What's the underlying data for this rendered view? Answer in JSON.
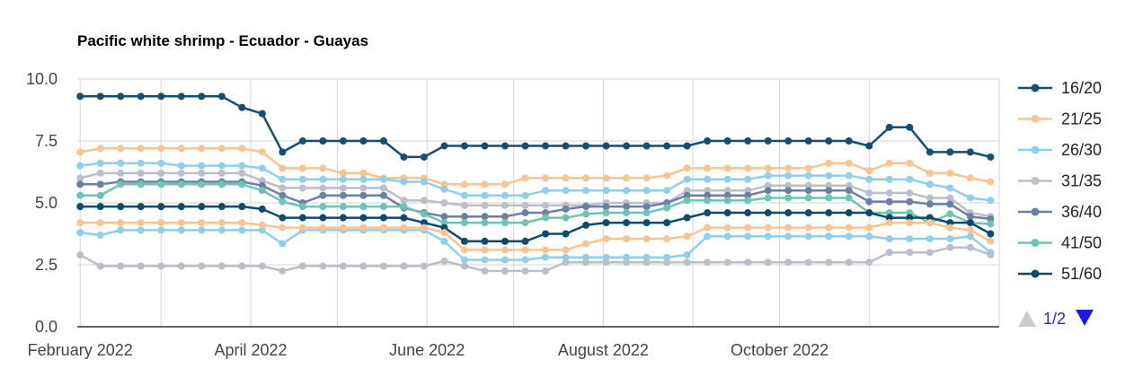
{
  "chart_data": {
    "type": "line",
    "title": "Pacific white shrimp - Ecuador - Guayas",
    "xlabel": "",
    "ylabel": "",
    "ylim": [
      0,
      10
    ],
    "y_ticks": [
      "0.0",
      "2.5",
      "5.0",
      "7.5",
      "10.0"
    ],
    "x_ticks": [
      {
        "date": "2022-02-01",
        "label": "February 2022"
      },
      {
        "date": "2022-04-01",
        "label": "April 2022"
      },
      {
        "date": "2022-06-01",
        "label": "June 2022"
      },
      {
        "date": "2022-08-01",
        "label": "August 2022"
      },
      {
        "date": "2022-10-01",
        "label": "October 2022"
      }
    ],
    "x_gridlines": [
      "2022-02-01",
      "2022-03-01",
      "2022-04-01",
      "2022-05-01",
      "2022-06-01",
      "2022-07-01",
      "2022-08-01",
      "2022-09-01",
      "2022-10-01",
      "2022-11-01"
    ],
    "xlim": [
      "2022-01-31",
      "2022-12-16"
    ],
    "grid": true,
    "legend_position": "right",
    "x": [
      "2022-02-01",
      "2022-02-08",
      "2022-02-15",
      "2022-02-22",
      "2022-03-01",
      "2022-03-08",
      "2022-03-15",
      "2022-03-22",
      "2022-03-29",
      "2022-04-05",
      "2022-04-12",
      "2022-04-19",
      "2022-04-26",
      "2022-05-03",
      "2022-05-10",
      "2022-05-17",
      "2022-05-24",
      "2022-05-31",
      "2022-06-07",
      "2022-06-14",
      "2022-06-21",
      "2022-06-28",
      "2022-07-05",
      "2022-07-12",
      "2022-07-19",
      "2022-07-26",
      "2022-08-02",
      "2022-08-09",
      "2022-08-16",
      "2022-08-23",
      "2022-08-30",
      "2022-09-06",
      "2022-09-13",
      "2022-09-20",
      "2022-09-27",
      "2022-10-04",
      "2022-10-11",
      "2022-10-18",
      "2022-10-25",
      "2022-11-01",
      "2022-11-08",
      "2022-11-15",
      "2022-11-22",
      "2022-11-29",
      "2022-12-06",
      "2022-12-13"
    ],
    "series": [
      {
        "name": "16/20",
        "color": "#134f70",
        "values": [
          9.3,
          9.3,
          9.3,
          9.3,
          9.3,
          9.3,
          9.3,
          9.3,
          8.85,
          8.6,
          7.05,
          7.5,
          7.5,
          7.5,
          7.5,
          7.5,
          6.85,
          6.85,
          7.3,
          7.3,
          7.3,
          7.3,
          7.3,
          7.3,
          7.3,
          7.3,
          7.3,
          7.3,
          7.3,
          7.3,
          7.3,
          7.5,
          7.5,
          7.5,
          7.5,
          7.5,
          7.5,
          7.5,
          7.5,
          7.3,
          8.05,
          8.05,
          7.05,
          7.05,
          7.05,
          6.85
        ]
      },
      {
        "name": "21/25",
        "color": "#fbc390",
        "values": [
          7.05,
          7.2,
          7.2,
          7.2,
          7.2,
          7.2,
          7.2,
          7.2,
          7.2,
          7.05,
          6.4,
          6.4,
          6.4,
          6.2,
          6.2,
          6.0,
          6.0,
          6.0,
          5.75,
          5.75,
          5.75,
          5.75,
          6.0,
          6.0,
          6.0,
          6.0,
          6.0,
          6.0,
          6.0,
          6.1,
          6.4,
          6.4,
          6.4,
          6.4,
          6.4,
          6.4,
          6.4,
          6.6,
          6.6,
          6.3,
          6.6,
          6.6,
          6.2,
          6.2,
          6.0,
          5.85
        ]
      },
      {
        "name": "26/30",
        "color": "#8fcfea",
        "values": [
          6.5,
          6.6,
          6.6,
          6.6,
          6.6,
          6.5,
          6.5,
          6.5,
          6.5,
          6.4,
          5.95,
          5.95,
          5.95,
          5.95,
          5.95,
          5.95,
          5.85,
          5.85,
          5.55,
          5.3,
          5.3,
          5.3,
          5.3,
          5.5,
          5.5,
          5.5,
          5.5,
          5.5,
          5.5,
          5.5,
          5.95,
          5.95,
          5.95,
          5.95,
          6.1,
          6.1,
          6.1,
          6.1,
          6.1,
          5.95,
          5.95,
          5.95,
          5.75,
          5.6,
          5.2,
          5.1
        ]
      },
      {
        "name": "31/35",
        "color": "#bbbfcc",
        "values": [
          6.0,
          6.2,
          6.2,
          6.2,
          6.2,
          6.2,
          6.2,
          6.2,
          6.2,
          5.9,
          5.6,
          5.6,
          5.6,
          5.6,
          5.6,
          5.6,
          5.1,
          5.1,
          5.0,
          4.9,
          4.9,
          4.9,
          4.9,
          4.9,
          4.9,
          4.9,
          5.0,
          5.0,
          5.0,
          5.0,
          5.5,
          5.5,
          5.5,
          5.5,
          5.7,
          5.7,
          5.7,
          5.7,
          5.7,
          5.4,
          5.4,
          5.4,
          5.2,
          5.2,
          4.6,
          4.45
        ]
      },
      {
        "name": "36/40",
        "color": "#6b81a3",
        "values": [
          5.75,
          5.75,
          5.85,
          5.85,
          5.85,
          5.85,
          5.85,
          5.85,
          5.85,
          5.7,
          5.3,
          5.0,
          5.3,
          5.3,
          5.3,
          5.3,
          4.8,
          4.6,
          4.45,
          4.45,
          4.45,
          4.45,
          4.6,
          4.6,
          4.75,
          4.85,
          4.85,
          4.85,
          4.85,
          5.0,
          5.3,
          5.3,
          5.3,
          5.3,
          5.5,
          5.5,
          5.5,
          5.5,
          5.5,
          5.05,
          5.05,
          5.05,
          4.95,
          4.95,
          4.45,
          4.35
        ]
      },
      {
        "name": "41/50",
        "color": "#6ec4b3",
        "values": [
          5.3,
          5.3,
          5.75,
          5.75,
          5.75,
          5.75,
          5.75,
          5.75,
          5.75,
          5.5,
          5.05,
          4.85,
          4.85,
          4.85,
          4.85,
          4.85,
          4.85,
          4.55,
          4.2,
          4.2,
          4.2,
          4.2,
          4.2,
          4.4,
          4.4,
          4.55,
          4.6,
          4.6,
          4.6,
          4.8,
          5.1,
          5.1,
          5.1,
          5.1,
          5.2,
          5.2,
          5.2,
          5.2,
          5.2,
          4.6,
          4.6,
          4.6,
          4.2,
          4.55,
          4.2,
          4.15
        ]
      },
      {
        "name": "51/60",
        "color": "#0e4a6d",
        "values": [
          4.85,
          4.85,
          4.85,
          4.85,
          4.85,
          4.85,
          4.85,
          4.85,
          4.85,
          4.75,
          4.4,
          4.4,
          4.4,
          4.4,
          4.4,
          4.4,
          4.4,
          4.2,
          4.0,
          3.45,
          3.45,
          3.45,
          3.45,
          3.75,
          3.75,
          4.1,
          4.2,
          4.2,
          4.2,
          4.2,
          4.4,
          4.6,
          4.6,
          4.6,
          4.6,
          4.6,
          4.6,
          4.6,
          4.6,
          4.6,
          4.4,
          4.4,
          4.4,
          4.2,
          4.2,
          3.75
        ]
      },
      {
        "name": "",
        "color": "#8fcfea",
        "values": [
          3.8,
          3.7,
          3.9,
          3.9,
          3.9,
          3.9,
          3.9,
          3.9,
          3.9,
          3.9,
          3.35,
          3.9,
          3.9,
          3.9,
          3.9,
          3.9,
          3.9,
          3.9,
          3.45,
          2.7,
          2.7,
          2.7,
          2.7,
          2.8,
          2.8,
          2.8,
          2.8,
          2.8,
          2.8,
          2.8,
          2.9,
          3.65,
          3.65,
          3.65,
          3.65,
          3.65,
          3.65,
          3.65,
          3.65,
          3.65,
          3.55,
          3.55,
          3.55,
          3.55,
          3.65,
          3.0
        ]
      },
      {
        "name": "",
        "color": "#fbc390",
        "values": [
          4.2,
          4.2,
          4.2,
          4.2,
          4.2,
          4.2,
          4.2,
          4.2,
          4.2,
          4.1,
          4.0,
          4.0,
          4.0,
          4.0,
          4.0,
          4.0,
          4.0,
          4.0,
          3.8,
          3.1,
          3.1,
          3.1,
          3.1,
          3.1,
          3.1,
          3.35,
          3.55,
          3.55,
          3.55,
          3.55,
          3.65,
          4.0,
          4.0,
          4.0,
          4.0,
          4.0,
          4.0,
          4.0,
          4.0,
          4.0,
          4.2,
          4.2,
          4.2,
          4.0,
          3.9,
          3.45
        ]
      },
      {
        "name": "",
        "color": "#bbbfcc",
        "values": [
          2.9,
          2.45,
          2.45,
          2.45,
          2.45,
          2.45,
          2.45,
          2.45,
          2.45,
          2.45,
          2.25,
          2.45,
          2.45,
          2.45,
          2.45,
          2.45,
          2.45,
          2.45,
          2.65,
          2.45,
          2.25,
          2.25,
          2.25,
          2.25,
          2.6,
          2.6,
          2.6,
          2.6,
          2.6,
          2.6,
          2.6,
          2.6,
          2.6,
          2.6,
          2.6,
          2.6,
          2.6,
          2.6,
          2.6,
          2.6,
          3.0,
          3.0,
          3.0,
          3.2,
          3.2,
          2.9
        ]
      }
    ]
  },
  "legend": {
    "items": [
      {
        "label": "16/20",
        "color": "#134f70"
      },
      {
        "label": "21/25",
        "color": "#fbc390"
      },
      {
        "label": "26/30",
        "color": "#8fcfea"
      },
      {
        "label": "31/35",
        "color": "#bbbfcc"
      },
      {
        "label": "36/40",
        "color": "#6b81a3"
      },
      {
        "label": "41/50",
        "color": "#6ec4b3"
      },
      {
        "label": "51/60",
        "color": "#0e4a6d"
      }
    ],
    "pager": {
      "text": "1/2",
      "up_icon": "triangle-up-icon",
      "down_icon": "triangle-down-icon",
      "active_color": "#1a1ae6",
      "inactive_color": "#cccccc"
    }
  }
}
